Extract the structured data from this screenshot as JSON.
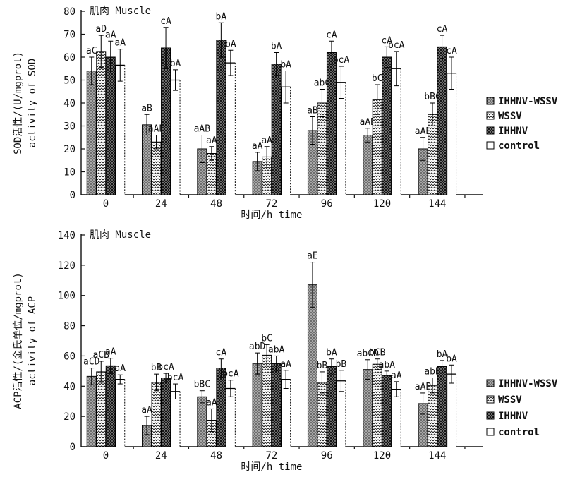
{
  "chart_data": [
    {
      "type": "bar",
      "id": "sod",
      "title": "肌肉 Muscle",
      "ylabel_cn": "SOD活性/(U/mgprot)",
      "ylabel_en": "activity of SOD",
      "xlabel": "时间/h time",
      "ylim": [
        0,
        80
      ],
      "ytick_step": 10,
      "yticks": [
        "0",
        "10",
        "20",
        "30",
        "40",
        "50",
        "60",
        "70",
        "80"
      ],
      "categories": [
        "0",
        "24",
        "48",
        "72",
        "96",
        "120",
        "144"
      ],
      "legend_position": "right",
      "grid": false,
      "series": [
        {
          "name": "IHHNV-WSSV",
          "pattern": "gray-stipple",
          "values": [
            54,
            30.5,
            20,
            14.5,
            28,
            26,
            20
          ],
          "errors": [
            6,
            4.5,
            6,
            4,
            6,
            3,
            5
          ],
          "labels": [
            "aC",
            "aB",
            "aAB",
            "aA",
            "aB",
            "aAB",
            "aAB"
          ]
        },
        {
          "name": "WSSV",
          "pattern": "zigzag",
          "values": [
            62.5,
            23,
            18,
            16.5,
            40,
            41.5,
            35
          ],
          "errors": [
            7,
            3,
            3,
            4.5,
            6,
            6.5,
            5
          ],
          "labels": [
            "aD",
            "aAB",
            "aA",
            "aA",
            "abC",
            "bC",
            "bBC"
          ]
        },
        {
          "name": "IHHNV",
          "pattern": "black-stipple",
          "values": [
            60,
            64,
            67.5,
            57,
            62,
            60,
            64.5
          ],
          "errors": [
            7,
            9,
            7.5,
            5,
            5,
            4.5,
            5
          ],
          "labels": [
            "aA",
            "cA",
            "bA",
            "bA",
            "cA",
            "cA",
            "cA"
          ]
        },
        {
          "name": "control",
          "pattern": "white",
          "values": [
            56.5,
            50,
            57.5,
            47,
            49,
            55,
            53
          ],
          "errors": [
            7,
            4.5,
            5.5,
            7,
            7,
            7.5,
            7
          ],
          "labels": [
            "aA",
            "bA",
            "bA",
            "bA",
            "bcA",
            "bcA",
            "cA"
          ]
        }
      ]
    },
    {
      "type": "bar",
      "id": "acp",
      "title": "肌肉 Muscle",
      "ylabel_cn": "ACP活性/(金氏单位/mgprot)",
      "ylabel_en": "activity of ACP",
      "xlabel": "时间/h time",
      "ylim": [
        0,
        140
      ],
      "ytick_step": 20,
      "yticks": [
        "0",
        "20",
        "40",
        "60",
        "80",
        "100",
        "120",
        "140"
      ],
      "categories": [
        "0",
        "24",
        "48",
        "72",
        "96",
        "120",
        "144"
      ],
      "legend_position": "right",
      "grid": false,
      "series": [
        {
          "name": "IHHNV-WSSV",
          "pattern": "gray-stipple",
          "values": [
            46.5,
            14,
            33,
            55,
            107,
            51,
            28.5
          ],
          "errors": [
            5.5,
            6,
            4,
            7,
            15,
            6.5,
            7
          ],
          "labels": [
            "aCD",
            "aA",
            "bBC",
            "abD",
            "aE",
            "abCD",
            "aAB"
          ]
        },
        {
          "name": "WSSV",
          "pattern": "zigzag",
          "values": [
            49.5,
            42.5,
            17.5,
            60.5,
            42.5,
            54.5,
            40.5
          ],
          "errors": [
            7,
            5.5,
            7.5,
            7,
            7,
            3.5,
            5
          ],
          "labels": [
            "aCB",
            "bB",
            "aA",
            "bC",
            "bB",
            "bCB",
            "abB"
          ]
        },
        {
          "name": "IHHNV",
          "pattern": "black-stipple",
          "values": [
            53.5,
            45.5,
            52,
            55,
            53,
            47,
            53
          ],
          "errors": [
            5,
            3,
            6,
            5,
            5,
            3,
            4
          ],
          "labels": [
            "aA",
            "bcA",
            "cA",
            "abA",
            "bA",
            "abA",
            "bA"
          ]
        },
        {
          "name": "control",
          "pattern": "white",
          "values": [
            44.5,
            36.5,
            38.5,
            44.5,
            43.5,
            38,
            48
          ],
          "errors": [
            3,
            5,
            5.5,
            6,
            7,
            5,
            6
          ],
          "labels": [
            "aA",
            "bcA",
            "bcA",
            "aA",
            "bB",
            "aA",
            "bA"
          ]
        }
      ]
    }
  ],
  "legend": {
    "items": [
      "IHHNV-WSSV",
      "WSSV",
      "IHHNV",
      "control"
    ]
  },
  "colors": {
    "axis": "#111111",
    "bar_outline": "#000000",
    "gray_fill": "#a8a8a8",
    "gray_dot": "#3d3d3d",
    "black_fill": "#161616",
    "black_dot": "#f0f0f0",
    "white_fill": "#ffffff",
    "background": "#ffffff"
  }
}
